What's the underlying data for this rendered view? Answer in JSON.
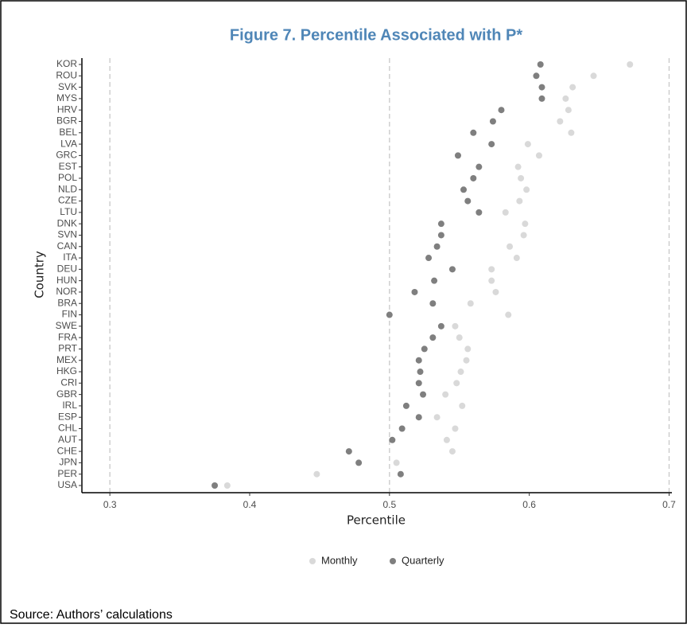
{
  "chart_data": {
    "type": "dot",
    "title": "Figure 7. Percentile Associated with P*",
    "x_label": "Percentile",
    "y_label": "Country",
    "source": "Source: Authors’ calculations",
    "categories": [
      "KOR",
      "ROU",
      "SVK",
      "MYS",
      "HRV",
      "BGR",
      "BEL",
      "LVA",
      "GRC",
      "EST",
      "POL",
      "NLD",
      "CZE",
      "LTU",
      "DNK",
      "SVN",
      "CAN",
      "ITA",
      "DEU",
      "HUN",
      "NOR",
      "BRA",
      "FIN",
      "SWE",
      "FRA",
      "PRT",
      "MEX",
      "HKG",
      "CRI",
      "GBR",
      "IRL",
      "ESP",
      "CHL",
      "AUT",
      "CHE",
      "JPN",
      "PER",
      "USA"
    ],
    "series": [
      {
        "name": "Monthly",
        "color": "#d9d9d9",
        "values": [
          0.672,
          0.646,
          0.631,
          0.626,
          0.628,
          0.622,
          0.63,
          0.599,
          0.607,
          0.592,
          0.594,
          0.598,
          0.593,
          0.583,
          0.597,
          0.596,
          0.586,
          0.591,
          0.573,
          0.573,
          0.576,
          0.558,
          0.585,
          0.547,
          0.55,
          0.556,
          0.555,
          0.551,
          0.548,
          0.54,
          0.552,
          0.534,
          0.547,
          0.541,
          0.545,
          0.505,
          0.448,
          0.384
        ]
      },
      {
        "name": "Quarterly",
        "color": "#7f7f7f",
        "values": [
          0.608,
          0.605,
          0.609,
          0.609,
          0.58,
          0.574,
          0.56,
          0.573,
          0.549,
          0.564,
          0.56,
          0.553,
          0.556,
          0.564,
          0.537,
          0.537,
          0.534,
          0.528,
          0.545,
          0.532,
          0.518,
          0.531,
          0.5,
          0.537,
          0.531,
          0.525,
          0.521,
          0.522,
          0.521,
          0.524,
          0.512,
          0.521,
          0.509,
          0.502,
          0.471,
          0.478,
          0.508,
          0.375
        ]
      }
    ],
    "xlim": [
      0.28,
      0.702
    ],
    "xticks": [
      0.3,
      0.4,
      0.5,
      0.6,
      0.7
    ],
    "reference_lines": [
      0.3,
      0.5,
      0.7
    ],
    "legend": "bottom"
  }
}
